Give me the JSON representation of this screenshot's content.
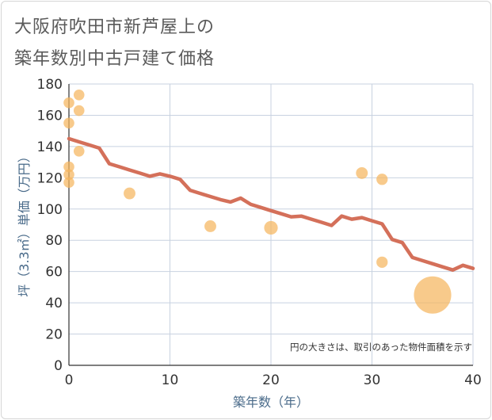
{
  "chart_data": {
    "type": "scatter",
    "title": [
      "大阪府吹田市新芦屋上の",
      "築年数別中古戸建て価格"
    ],
    "xlabel": "築年数（年）",
    "ylabel": "坪（3.3㎡）単価（万円）",
    "xlim": [
      0,
      40
    ],
    "ylim": [
      0,
      180
    ],
    "x_ticks": [
      0,
      10,
      20,
      30,
      40
    ],
    "y_ticks": [
      0,
      20,
      40,
      60,
      80,
      100,
      120,
      140,
      160,
      180
    ],
    "grid": true,
    "note": "円の大きさは、取引のあった物件面積を示す",
    "colors": {
      "points": "#f5b55e",
      "line": "#d4705a",
      "grid": "#c8d2e0",
      "axis_text": "#333333"
    },
    "points": [
      {
        "x": 0,
        "y": 168,
        "size": 1
      },
      {
        "x": 0,
        "y": 155,
        "size": 1
      },
      {
        "x": 0,
        "y": 127,
        "size": 1
      },
      {
        "x": 0,
        "y": 122,
        "size": 1
      },
      {
        "x": 0,
        "y": 117,
        "size": 1
      },
      {
        "x": 1,
        "y": 173,
        "size": 1
      },
      {
        "x": 1,
        "y": 163,
        "size": 1
      },
      {
        "x": 1,
        "y": 137,
        "size": 1
      },
      {
        "x": 6,
        "y": 110,
        "size": 1.2
      },
      {
        "x": 14,
        "y": 89,
        "size": 1.2
      },
      {
        "x": 20,
        "y": 88,
        "size": 1.6
      },
      {
        "x": 29,
        "y": 123,
        "size": 1.2
      },
      {
        "x": 31,
        "y": 119,
        "size": 1.1
      },
      {
        "x": 31,
        "y": 66,
        "size": 1.1
      },
      {
        "x": 36,
        "y": 45,
        "size": 12
      }
    ],
    "trend": {
      "x": [
        0,
        1,
        2,
        3,
        4,
        5,
        6,
        7,
        8,
        9,
        10,
        11,
        12,
        13,
        14,
        15,
        16,
        17,
        18,
        19,
        20,
        21,
        22,
        23,
        24,
        25,
        26,
        27,
        28,
        29,
        30,
        31,
        32,
        33,
        34,
        35,
        36,
        37,
        38,
        39,
        40
      ],
      "y": [
        145,
        143,
        141,
        139,
        129,
        127,
        125,
        123,
        121,
        122.5,
        121,
        119,
        112,
        110,
        108,
        106,
        104.5,
        107,
        103,
        101,
        99,
        97,
        95,
        95.5,
        93.5,
        91.5,
        89.5,
        95.5,
        93.5,
        94.5,
        92.5,
        90.5,
        80.5,
        78.5,
        69,
        67,
        65,
        63,
        61,
        64,
        62
      ]
    }
  }
}
